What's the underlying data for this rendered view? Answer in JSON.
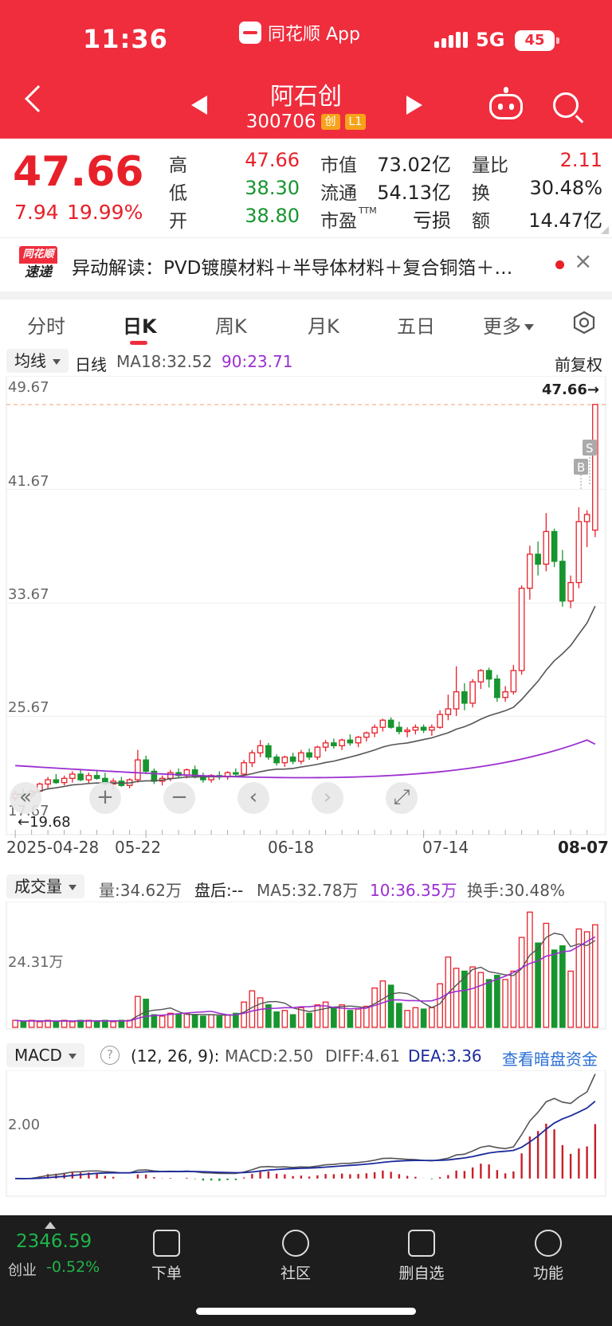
{
  "status_bar": {
    "time": "11:36",
    "app_label": "同花顺 App",
    "network": "5G",
    "battery": "45"
  },
  "nav": {
    "stock_name": "阿石创",
    "stock_code": "300706",
    "tag_board": "创",
    "tag_level": "L1",
    "icons": [
      "back-icon",
      "prev-stock-icon",
      "next-stock-icon",
      "robot-icon",
      "search-icon"
    ]
  },
  "quote": {
    "price": "47.66",
    "change": "7.94",
    "change_pct": "19.99%",
    "price_color": "#e8202a",
    "high_label": "高",
    "high": "47.66",
    "low_label": "低",
    "low": "38.30",
    "open_label": "开",
    "open": "38.80",
    "mktcap_label": "市值",
    "mktcap": "73.02亿",
    "float_label": "流通",
    "float": "54.13亿",
    "pe_label": "市盈",
    "pe_sup": "TTM",
    "pe": "亏损",
    "volratio_label": "量比",
    "volratio": "2.11",
    "turnover_label": "换",
    "turnover": "30.48%",
    "amount_label": "额",
    "amount": "14.47亿"
  },
  "news": {
    "logo_top": "同花顺",
    "logo_bottom": "速递",
    "text": "异动解读：PVD镀膜材料＋半导体材料＋复合铜箔＋…",
    "close": "×"
  },
  "tabs": [
    {
      "label": "分时"
    },
    {
      "label": "日K"
    },
    {
      "label": "周K"
    },
    {
      "label": "月K"
    },
    {
      "label": "五日"
    },
    {
      "label": "更多"
    }
  ],
  "main_chart": {
    "indicator": "均线",
    "period": "日线",
    "ma18": "MA18:32.52",
    "ma90": "90:23.71",
    "adjust": "前复权",
    "y_top": "49.67",
    "y_41": "41.67",
    "y_33": "33.67",
    "y_25": "25.67",
    "y_bottom": "17.67",
    "last_price_marker": "47.66→",
    "low_marker": "←19.68",
    "badge_b": "B",
    "badge_s": "S",
    "dates": [
      "2025-04-28",
      "05-22",
      "06-18",
      "07-14",
      "08-07"
    ]
  },
  "volume_chart": {
    "indicator": "成交量",
    "vol": "量:34.62万",
    "after_hours": "盘后:--",
    "ma5": "MA5:32.78万",
    "ma10": "10:36.35万",
    "turnover": "换手:30.48%",
    "y_label": "24.31万"
  },
  "macd_chart": {
    "indicator": "MACD",
    "help": "?",
    "params": "(12, 26, 9):",
    "macd": "MACD:2.50",
    "diff": "DIFF:4.61",
    "dea": "DEA:3.36",
    "link": "查看暗盘资金",
    "y_label": "2.00"
  },
  "chart_data": {
    "type": "candlestick",
    "ylim": [
      17.67,
      49.67
    ],
    "candles": [
      [
        19.9,
        20.4,
        19.7,
        20.2
      ],
      [
        20.2,
        20.6,
        20.0,
        20.1
      ],
      [
        20.1,
        20.5,
        19.9,
        20.4
      ],
      [
        20.4,
        21.0,
        20.2,
        20.9
      ],
      [
        20.9,
        21.4,
        20.6,
        21.2
      ],
      [
        21.2,
        21.6,
        20.9,
        21.0
      ],
      [
        21.0,
        21.5,
        20.8,
        21.3
      ],
      [
        21.3,
        21.8,
        21.0,
        21.6
      ],
      [
        21.6,
        21.9,
        21.1,
        21.2
      ],
      [
        21.2,
        21.7,
        20.9,
        21.5
      ],
      [
        21.5,
        21.9,
        21.2,
        21.3
      ],
      [
        21.3,
        21.7,
        20.8,
        20.9
      ],
      [
        20.9,
        21.3,
        20.5,
        21.1
      ],
      [
        21.1,
        21.4,
        20.7,
        20.8
      ],
      [
        20.8,
        21.3,
        20.6,
        21.2
      ],
      [
        21.2,
        23.3,
        21.0,
        22.6
      ],
      [
        22.6,
        22.9,
        21.6,
        21.8
      ],
      [
        21.8,
        22.0,
        20.9,
        21.1
      ],
      [
        21.1,
        21.5,
        20.8,
        21.3
      ],
      [
        21.3,
        21.9,
        21.1,
        21.7
      ],
      [
        21.7,
        22.0,
        21.3,
        21.5
      ],
      [
        21.5,
        22.0,
        21.3,
        21.9
      ],
      [
        21.9,
        22.2,
        21.3,
        21.4
      ],
      [
        21.4,
        21.7,
        21.0,
        21.2
      ],
      [
        21.2,
        21.6,
        21.0,
        21.5
      ],
      [
        21.5,
        21.8,
        21.2,
        21.4
      ],
      [
        21.4,
        21.8,
        21.2,
        21.7
      ],
      [
        21.7,
        22.0,
        21.4,
        21.6
      ],
      [
        21.6,
        22.6,
        21.5,
        22.4
      ],
      [
        22.4,
        23.3,
        22.1,
        23.1
      ],
      [
        23.1,
        24.0,
        22.8,
        23.6
      ],
      [
        23.6,
        23.8,
        22.6,
        22.8
      ],
      [
        22.8,
        23.0,
        22.2,
        22.4
      ],
      [
        22.4,
        22.9,
        22.1,
        22.8
      ],
      [
        22.8,
        23.1,
        22.3,
        22.5
      ],
      [
        22.5,
        23.3,
        22.3,
        23.1
      ],
      [
        23.1,
        23.4,
        22.6,
        22.8
      ],
      [
        22.8,
        23.6,
        22.6,
        23.5
      ],
      [
        23.5,
        24.0,
        23.2,
        23.8
      ],
      [
        23.8,
        24.1,
        23.4,
        23.6
      ],
      [
        23.6,
        24.1,
        23.3,
        24.0
      ],
      [
        24.0,
        24.4,
        23.6,
        23.8
      ],
      [
        23.8,
        24.3,
        23.5,
        24.2
      ],
      [
        24.2,
        24.6,
        23.9,
        24.5
      ],
      [
        24.5,
        25.1,
        24.2,
        24.9
      ],
      [
        24.9,
        25.5,
        24.6,
        25.4
      ],
      [
        25.4,
        25.6,
        24.8,
        24.9
      ],
      [
        24.9,
        25.3,
        24.4,
        24.6
      ],
      [
        24.6,
        24.9,
        24.2,
        24.7
      ],
      [
        24.7,
        25.1,
        24.4,
        24.9
      ],
      [
        24.9,
        25.1,
        24.5,
        24.7
      ],
      [
        24.7,
        25.1,
        24.3,
        24.9
      ],
      [
        24.9,
        26.1,
        24.8,
        25.8
      ],
      [
        25.8,
        27.2,
        25.4,
        26.2
      ],
      [
        26.2,
        29.2,
        25.7,
        27.4
      ],
      [
        27.4,
        28.0,
        26.1,
        26.6
      ],
      [
        26.6,
        28.3,
        26.3,
        28.1
      ],
      [
        28.1,
        29.0,
        27.6,
        28.9
      ],
      [
        28.9,
        29.1,
        27.7,
        28.3
      ],
      [
        28.3,
        28.6,
        26.7,
        27.0
      ],
      [
        27.0,
        27.8,
        26.7,
        27.4
      ],
      [
        27.4,
        29.3,
        27.2,
        28.9
      ],
      [
        28.9,
        34.9,
        28.6,
        34.7
      ],
      [
        34.7,
        37.7,
        33.9,
        37.1
      ],
      [
        37.1,
        38.0,
        35.6,
        36.4
      ],
      [
        36.4,
        40.0,
        35.9,
        38.7
      ],
      [
        38.7,
        38.9,
        36.2,
        36.6
      ],
      [
        36.6,
        37.4,
        33.4,
        33.8
      ],
      [
        33.8,
        35.6,
        33.3,
        35.1
      ],
      [
        35.1,
        40.4,
        34.7,
        39.4
      ],
      [
        39.4,
        40.2,
        37.6,
        39.9
      ],
      [
        38.8,
        47.66,
        38.3,
        47.66
      ]
    ],
    "ma18_last": 32.52,
    "ma90_last": 23.71,
    "volume_series": {
      "values": [
        5,
        4,
        5,
        4,
        5,
        4,
        5,
        4,
        5,
        5,
        4,
        5,
        4,
        5,
        5,
        22,
        20,
        9,
        8,
        10,
        9,
        10,
        9,
        8,
        9,
        8,
        9,
        10,
        18,
        26,
        21,
        16,
        11,
        12,
        9,
        14,
        10,
        16,
        18,
        14,
        16,
        12,
        13,
        15,
        28,
        33,
        30,
        17,
        12,
        14,
        13,
        14,
        31,
        50,
        42,
        40,
        43,
        39,
        34,
        37,
        34,
        40,
        64,
        82,
        60,
        74,
        55,
        58,
        40,
        70,
        68,
        73
      ],
      "ylim": [
        0,
        85
      ]
    },
    "macd_series": {
      "diff_last": 4.61,
      "dea_last": 3.36,
      "macd_last": 2.5
    }
  },
  "bottom_bar": {
    "index_value": "2346.59",
    "index_name": "创业",
    "index_change": "-0.52%",
    "items": [
      {
        "label": "下单"
      },
      {
        "label": "社区"
      },
      {
        "label": "删自选"
      },
      {
        "label": "功能"
      }
    ]
  }
}
